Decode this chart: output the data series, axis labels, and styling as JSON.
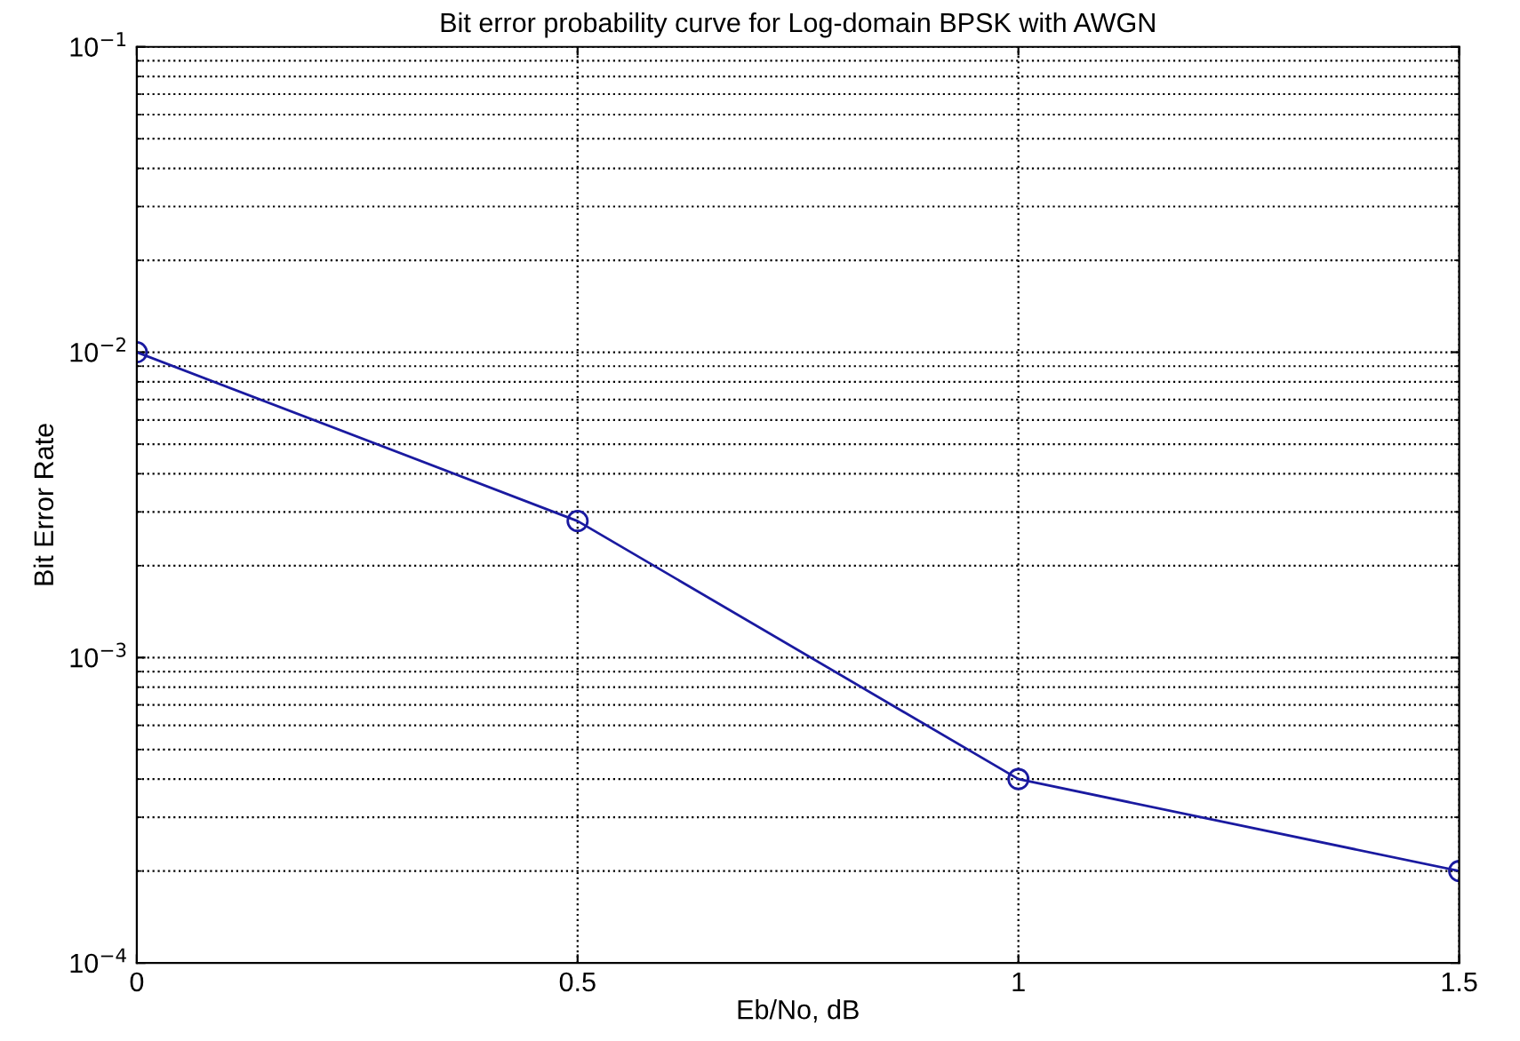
{
  "chart_data": {
    "type": "line",
    "title": "Bit error probability curve for Log-domain BPSK with AWGN",
    "xlabel": "Eb/No, dB",
    "ylabel": "Bit Error Rate",
    "x": [
      0,
      0.5,
      1,
      1.5
    ],
    "series": [
      {
        "color": "#1a1aa0",
        "values": [
          0.01,
          0.0028,
          0.0004,
          0.0002
        ]
      }
    ],
    "log": "y",
    "xlim": [
      0,
      1.5
    ],
    "ylim": [
      0.0001,
      0.1
    ],
    "xticks": [
      0,
      0.5,
      1,
      1.5
    ],
    "yticks": [
      {
        "value": 0.0001,
        "label": "10$^{−4}$"
      },
      {
        "value": 0.001,
        "label": "10$^{−3}$"
      },
      {
        "value": 0.01,
        "label": "10$^{−2}$"
      },
      {
        "value": 0.1,
        "label": "10$^{−1}$"
      }
    ],
    "grid": true,
    "marker": "circle",
    "line_style": "solid"
  }
}
